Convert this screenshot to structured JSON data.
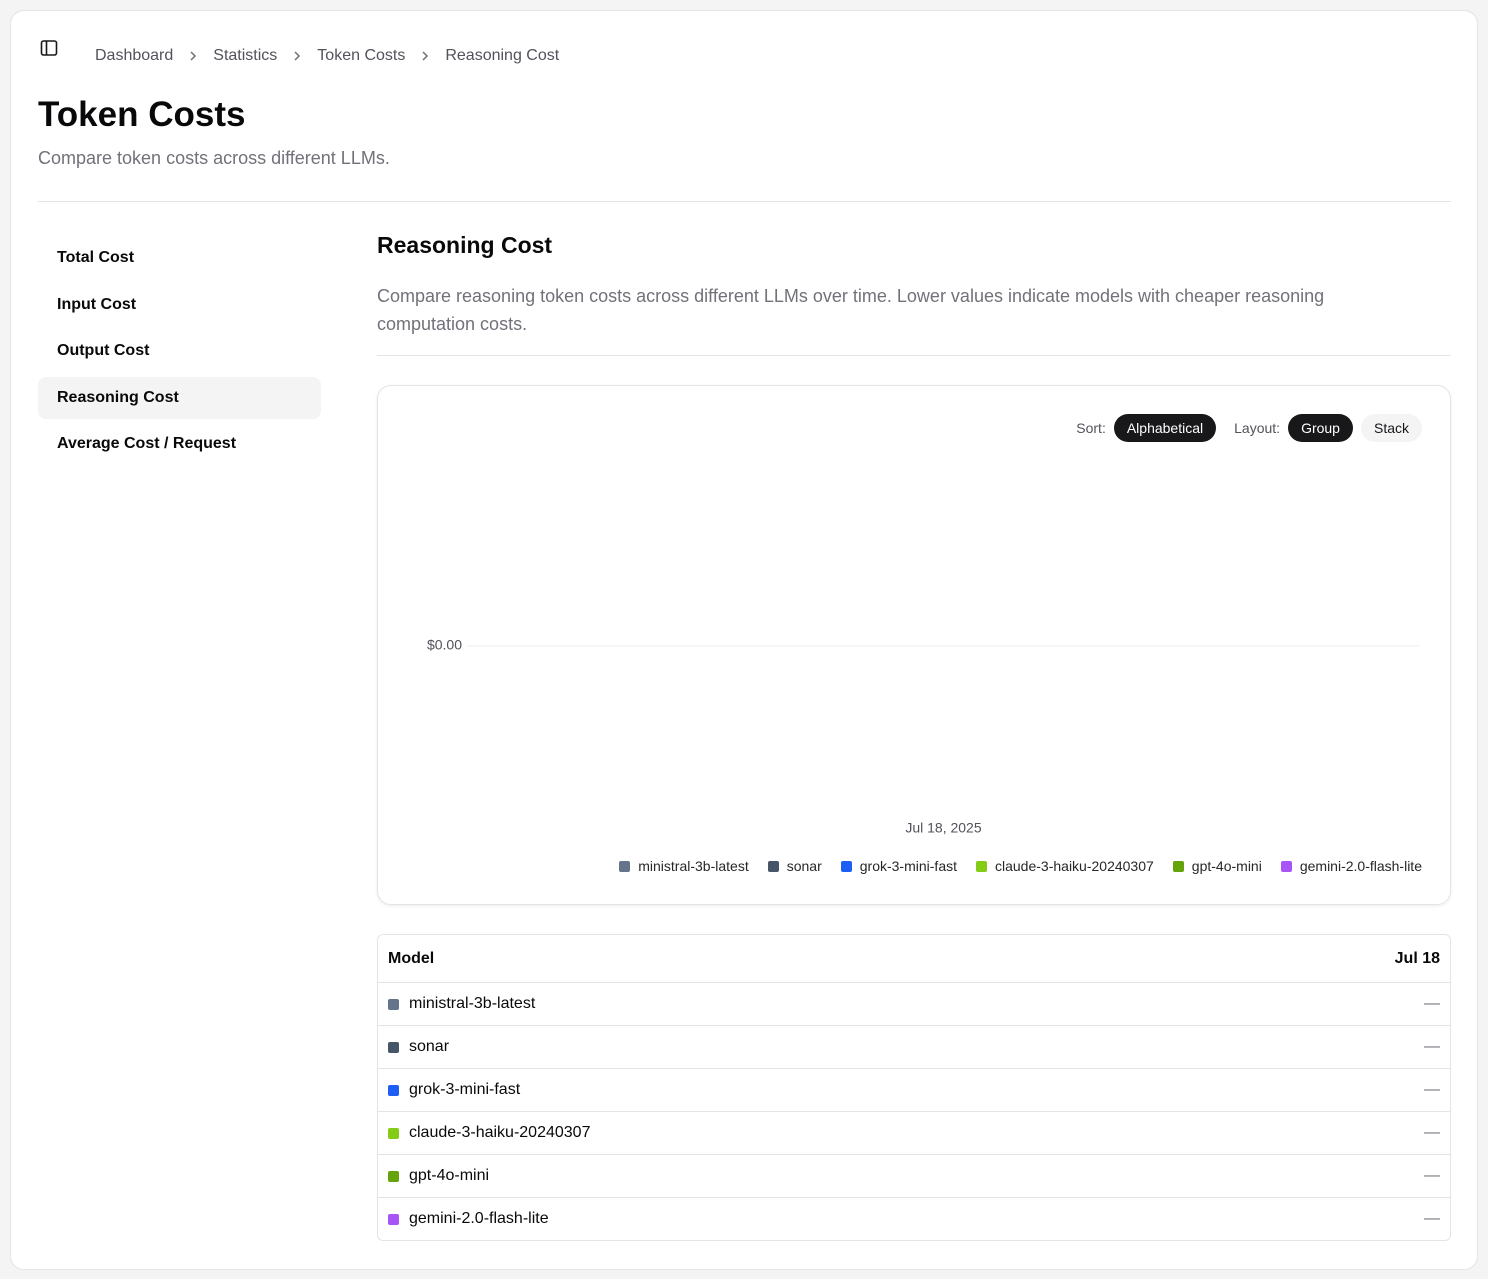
{
  "breadcrumb": [
    "Dashboard",
    "Statistics",
    "Token Costs",
    "Reasoning Cost"
  ],
  "header": {
    "title": "Token Costs",
    "subtitle": "Compare token costs across different LLMs."
  },
  "nav": {
    "items": [
      "Total Cost",
      "Input Cost",
      "Output Cost",
      "Reasoning Cost",
      "Average Cost / Request"
    ],
    "active": 3
  },
  "section": {
    "title": "Reasoning Cost",
    "description": "Compare reasoning token costs across different LLMs over time. Lower values indicate models with cheaper reasoning computation costs."
  },
  "controls": {
    "sort_label": "Sort:",
    "sort_options": [
      "Alphabetical"
    ],
    "sort_active": 0,
    "layout_label": "Layout:",
    "layout_options": [
      "Group",
      "Stack"
    ],
    "layout_active": 0
  },
  "chart_data": {
    "type": "bar",
    "categories": [
      "Jul 18, 2025"
    ],
    "series": [
      {
        "name": "ministral-3b-latest",
        "color": "#64748b",
        "values": [
          0
        ]
      },
      {
        "name": "sonar",
        "color": "#475569",
        "values": [
          0
        ]
      },
      {
        "name": "grok-3-mini-fast",
        "color": "#1d5ff5",
        "values": [
          0
        ]
      },
      {
        "name": "claude-3-haiku-20240307",
        "color": "#84cc16",
        "values": [
          0
        ]
      },
      {
        "name": "gpt-4o-mini",
        "color": "#65a30d",
        "values": [
          0
        ]
      },
      {
        "name": "gemini-2.0-flash-lite",
        "color": "#a855f7",
        "values": [
          0
        ]
      }
    ],
    "ylim": [
      -1,
      1
    ],
    "yticks": [
      {
        "value": 0,
        "label": "$0.00"
      }
    ],
    "grid": true
  },
  "table": {
    "header": [
      "Model",
      "Jul 18"
    ],
    "values": [
      "—",
      "—",
      "—",
      "—",
      "—",
      "—"
    ]
  }
}
